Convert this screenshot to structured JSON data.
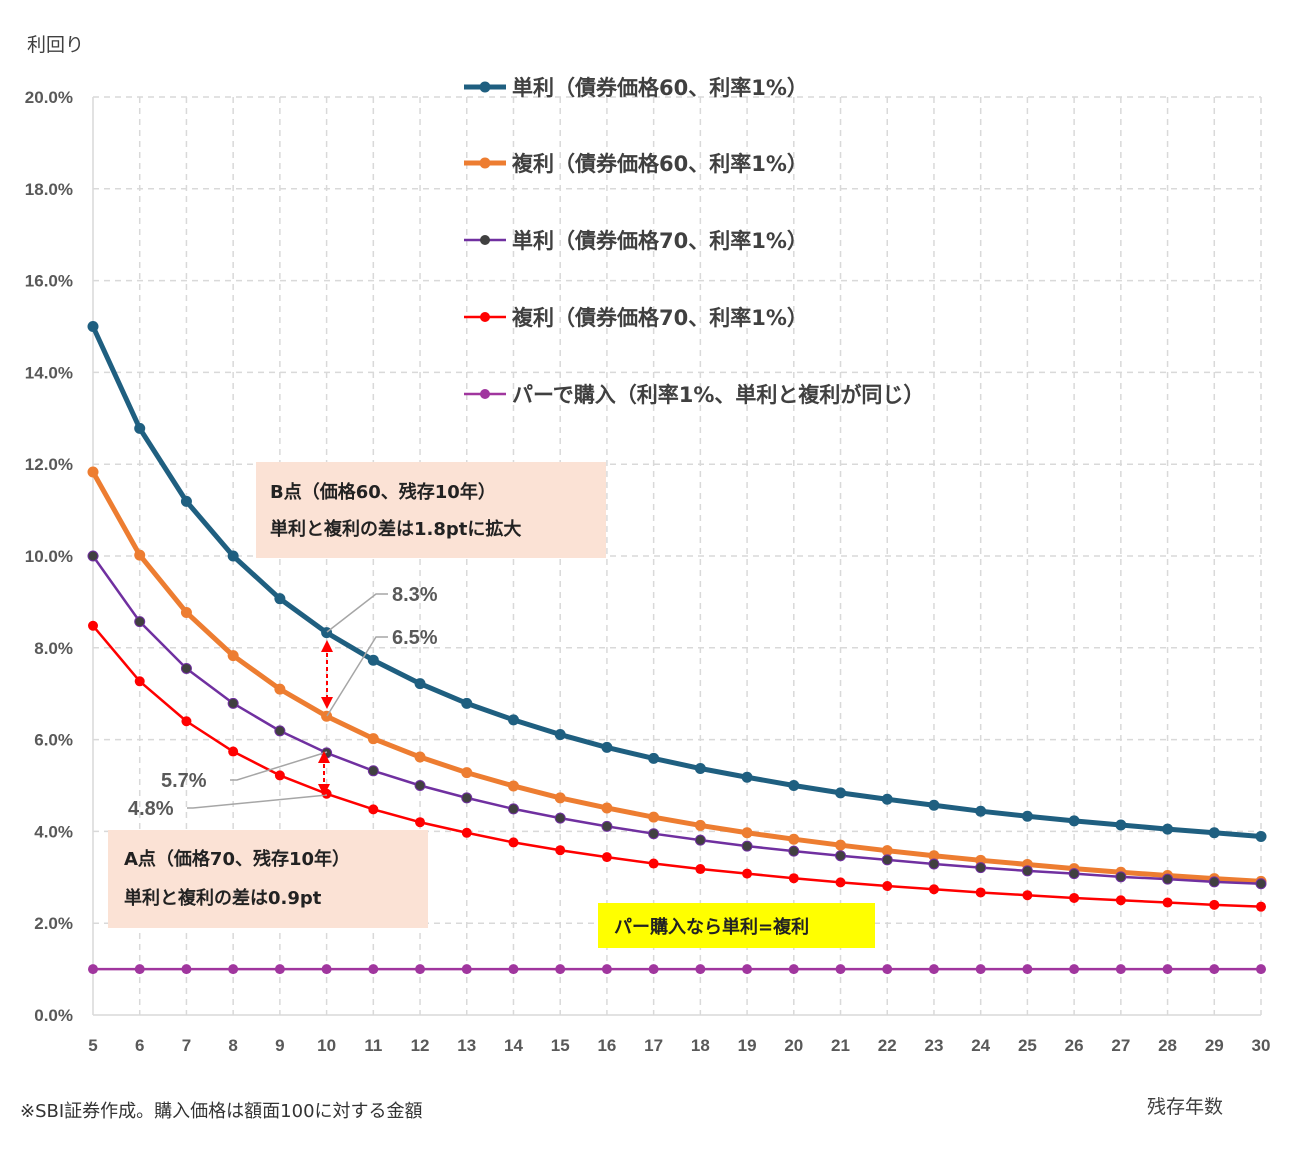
{
  "chart_data": {
    "type": "line",
    "ylabel": "利回り",
    "xlabel": "残存年数",
    "ylim": [
      0,
      20
    ],
    "yticks": [
      0,
      2,
      4,
      6,
      8,
      10,
      12,
      14,
      16,
      18,
      20
    ],
    "ytick_labels": [
      "0.0%",
      "2.0%",
      "4.0%",
      "6.0%",
      "8.0%",
      "10.0%",
      "12.0%",
      "14.0%",
      "16.0%",
      "18.0%",
      "20.0%"
    ],
    "x": [
      5,
      6,
      7,
      8,
      9,
      10,
      11,
      12,
      13,
      14,
      15,
      16,
      17,
      18,
      19,
      20,
      21,
      22,
      23,
      24,
      25,
      26,
      27,
      28,
      29,
      30
    ],
    "xtick_labels": [
      "5",
      "6",
      "7",
      "8",
      "9",
      "10",
      "11",
      "12",
      "13",
      "14",
      "15",
      "16",
      "17",
      "18",
      "19",
      "20",
      "21",
      "22",
      "23",
      "24",
      "25",
      "26",
      "27",
      "28",
      "29",
      "30"
    ],
    "grid": "dashed",
    "legend_position": "top",
    "series": [
      {
        "name": "単利（債券価格60、利率1%）",
        "color": "#1f5f80",
        "marker": "#1f5f80",
        "values": [
          15.0,
          12.78,
          11.19,
          10.0,
          9.07,
          8.33,
          7.73,
          7.22,
          6.79,
          6.43,
          6.11,
          5.83,
          5.59,
          5.37,
          5.18,
          5.0,
          4.84,
          4.7,
          4.57,
          4.44,
          4.33,
          4.23,
          4.14,
          4.05,
          3.97,
          3.89
        ]
      },
      {
        "name": "複利（債券価格60、利率1%）",
        "color": "#ed7d31",
        "marker": "#ed7d31",
        "values": [
          11.83,
          10.02,
          8.77,
          7.83,
          7.1,
          6.51,
          6.02,
          5.62,
          5.28,
          4.99,
          4.73,
          4.51,
          4.31,
          4.13,
          3.97,
          3.83,
          3.7,
          3.58,
          3.47,
          3.37,
          3.28,
          3.19,
          3.11,
          3.04,
          2.97,
          2.91
        ]
      },
      {
        "name": "単利（債券価格70、利率1%）",
        "color": "#7030a0",
        "marker": "#404040",
        "values": [
          10.0,
          8.57,
          7.55,
          6.79,
          6.19,
          5.71,
          5.32,
          5.0,
          4.73,
          4.49,
          4.29,
          4.11,
          3.95,
          3.81,
          3.68,
          3.57,
          3.47,
          3.38,
          3.29,
          3.21,
          3.14,
          3.08,
          3.01,
          2.96,
          2.9,
          2.86
        ]
      },
      {
        "name": "複利（債券価格70、利率1%）",
        "color": "#ff0000",
        "marker": "#ff0000",
        "values": [
          8.48,
          7.27,
          6.4,
          5.74,
          5.22,
          4.82,
          4.48,
          4.2,
          3.97,
          3.76,
          3.59,
          3.44,
          3.3,
          3.18,
          3.08,
          2.98,
          2.89,
          2.81,
          2.74,
          2.67,
          2.61,
          2.55,
          2.5,
          2.45,
          2.4,
          2.36
        ]
      },
      {
        "name": "パーで購入（利率1%、単利と複利が同じ）",
        "color": "#a0369e",
        "marker": "#a0369e",
        "values": [
          1,
          1,
          1,
          1,
          1,
          1,
          1,
          1,
          1,
          1,
          1,
          1,
          1,
          1,
          1,
          1,
          1,
          1,
          1,
          1,
          1,
          1,
          1,
          1,
          1,
          1
        ]
      }
    ],
    "annotations": {
      "b_point": {
        "line1": "B点（価格60、残存10年）",
        "line2": "単利と複利の差は1.8ptに拡大",
        "bg": "#fbe2d5"
      },
      "a_point": {
        "line1": "A点（価格70、残存10年）",
        "line2": "単利と複利の差は0.9pt",
        "bg": "#fbe2d5"
      },
      "par_note": {
        "text": "パー購入なら単利=複利",
        "bg": "#ffff00"
      },
      "callouts": [
        "8.3%",
        "6.5%",
        "5.7%",
        "4.8%"
      ]
    }
  },
  "footer": {
    "note": "※SBI証券作成。購入価格は額面100に対する金額"
  }
}
